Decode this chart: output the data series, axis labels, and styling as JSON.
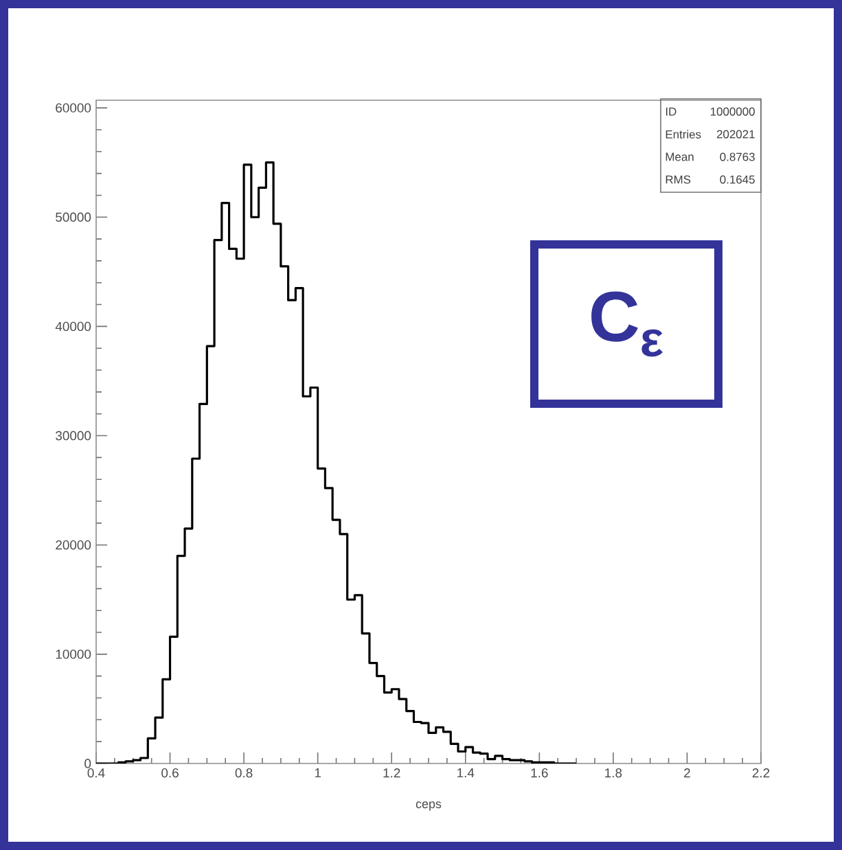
{
  "chart_data": {
    "type": "histogram",
    "title": "C$_{ε}$",
    "xlabel": "ceps",
    "color": "#000000",
    "bins": [
      0.4,
      0.42,
      0.44,
      0.46,
      0.48,
      0.5,
      0.52,
      0.54,
      0.56,
      0.58,
      0.6,
      0.62,
      0.64,
      0.66,
      0.68,
      0.7,
      0.72,
      0.74,
      0.76,
      0.78,
      0.8,
      0.82,
      0.84,
      0.86,
      0.88,
      0.9,
      0.92,
      0.94,
      0.96,
      0.98,
      1.0,
      1.02,
      1.04,
      1.06,
      1.08,
      1.1,
      1.12,
      1.14,
      1.16,
      1.18,
      1.2,
      1.22,
      1.24,
      1.26,
      1.28,
      1.3,
      1.32,
      1.34,
      1.36,
      1.38,
      1.4,
      1.42,
      1.44,
      1.46,
      1.48,
      1.5,
      1.52,
      1.54,
      1.56,
      1.58,
      1.6,
      1.62,
      1.64,
      1.66,
      1.68,
      1.7
    ],
    "values": [
      0,
      0,
      0,
      100,
      200,
      300,
      500,
      2300,
      4200,
      7700,
      11600,
      19000,
      21500,
      27900,
      32900,
      38200,
      47900,
      51300,
      47100,
      46200,
      54800,
      50000,
      52700,
      55000,
      49400,
      45500,
      42400,
      43500,
      33600,
      34400,
      27000,
      25200,
      22300,
      21000,
      15000,
      15400,
      11900,
      9200,
      8000,
      6500,
      6800,
      5900,
      4800,
      3800,
      3700,
      2800,
      3300,
      2900,
      1800,
      1100,
      1500,
      1000,
      900,
      400,
      700,
      400,
      300,
      300,
      200,
      100,
      100,
      100,
      0,
      0,
      0
    ],
    "xlim": [
      0.4,
      2.2
    ],
    "ylim": [
      0,
      60700
    ],
    "xticks": [
      0.4,
      0.6,
      0.8,
      1,
      1.2,
      1.4,
      1.6,
      1.8,
      2,
      2.2
    ],
    "yticks": [
      0,
      10000,
      20000,
      30000,
      40000,
      50000,
      60000
    ],
    "grid": false,
    "annotations": [
      "ID",
      "1000000",
      "Entries",
      "202021",
      "Mean",
      "0.8763",
      "RMS",
      "0.1645"
    ]
  }
}
